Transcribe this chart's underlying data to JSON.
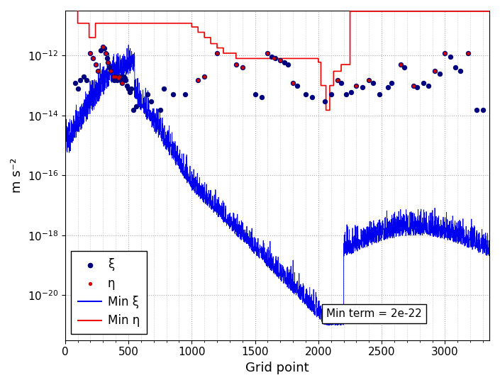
{
  "title": "",
  "xlabel": "Grid point",
  "ylabel": "m s⁻²",
  "xlim": [
    0,
    3350
  ],
  "ylim_log": [
    -21.5,
    -10.5
  ],
  "grid_color": "#aaaaaa",
  "bg_color": "#ffffff",
  "blue_line_color": "#0000ee",
  "red_line_color": "#ee0000",
  "blue_dot_color": "#00007f",
  "red_dot_color": "#cc0000",
  "annotation_text": "Min term = 2e-22",
  "legend_entries": [
    "ξ",
    "η",
    "Min ξ",
    "Min η"
  ],
  "n_points": 3350,
  "seed": 42,
  "dot_size_blue": 28,
  "dot_size_red": 12
}
